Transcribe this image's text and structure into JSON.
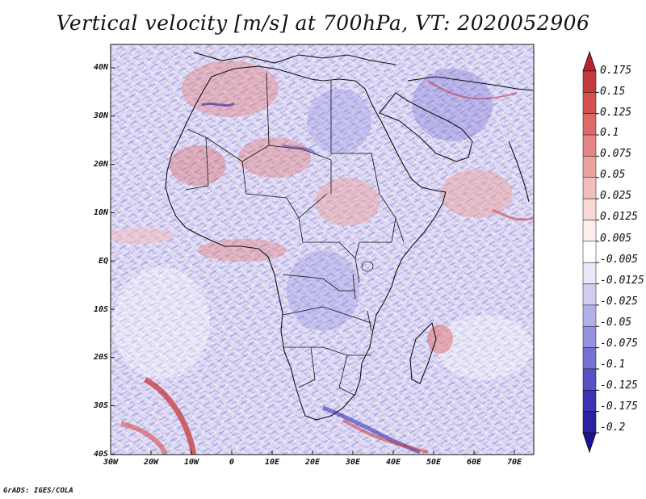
{
  "title": "Vertical velocity [m/s] at 700hPa, VT: 2020052906",
  "credit": "GrADS: IGES/COLA",
  "chart_data": {
    "type": "heatmap",
    "title": "Vertical velocity [m/s] at 700hPa, VT: 2020052906",
    "variable": "Vertical velocity",
    "units": "m/s",
    "level": "700hPa",
    "valid_time": "2020052906",
    "lon_range": [
      -30,
      75
    ],
    "lat_range": [
      -40,
      45
    ],
    "lon_ticks": [
      "30W",
      "20W",
      "10W",
      "0",
      "10E",
      "20E",
      "30E",
      "40E",
      "50E",
      "60E",
      "70E"
    ],
    "lat_ticks": [
      "40N",
      "30N",
      "20N",
      "10N",
      "EQ",
      "10S",
      "20S",
      "30S",
      "40S"
    ],
    "colorbar": {
      "labels": [
        "0.175",
        "0.15",
        "0.125",
        "0.1",
        "0.075",
        "0.05",
        "0.025",
        "0.0125",
        "0.005",
        "-0.005",
        "-0.0125",
        "-0.025",
        "-0.05",
        "-0.075",
        "-0.1",
        "-0.125",
        "-0.175",
        "-0.2"
      ],
      "colors": [
        "#b8242c",
        "#c63a3c",
        "#d5504e",
        "#de6a68",
        "#e58684",
        "#eca3a0",
        "#f2bebb",
        "#f8d8d5",
        "#fcefed",
        "#ffffff",
        "#e9e8f8",
        "#cfcdf2",
        "#b3b0ea",
        "#9692e0",
        "#7771d4",
        "#5750c6",
        "#3b33b4",
        "#2a22a0",
        "#1a1290"
      ]
    }
  }
}
